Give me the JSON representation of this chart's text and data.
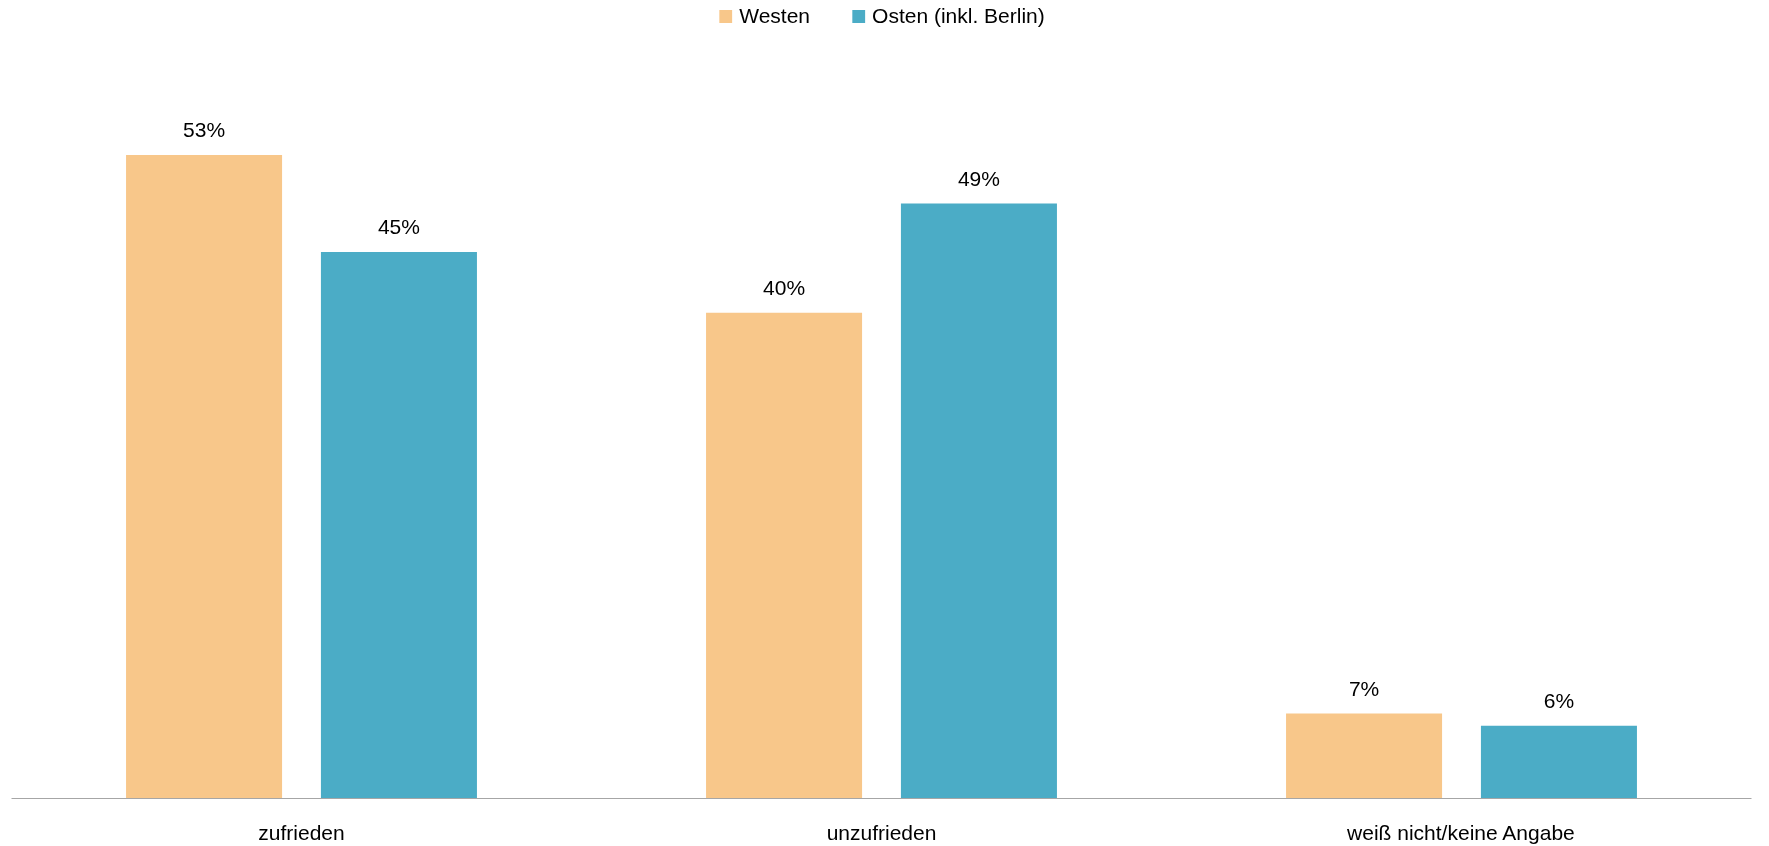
{
  "chart_data": {
    "type": "bar",
    "categories": [
      "zufrieden",
      "unzufrieden",
      "weiß nicht/keine Angabe"
    ],
    "series": [
      {
        "name": "Westen",
        "color": "#f8c78a",
        "values": [
          53,
          40,
          7
        ],
        "value_labels": [
          "53%",
          "40%",
          "7%"
        ]
      },
      {
        "name": "Osten (inkl. Berlin)",
        "color": "#4bacc6",
        "values": [
          45,
          49,
          6
        ],
        "value_labels": [
          "45%",
          "49%",
          "6%"
        ]
      }
    ],
    "tick_labels": "x",
    "legend": "top"
  }
}
